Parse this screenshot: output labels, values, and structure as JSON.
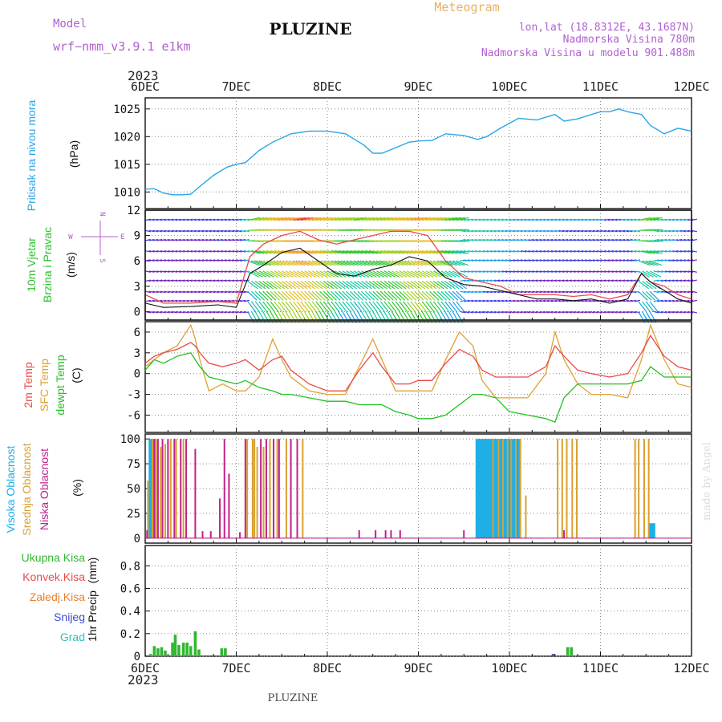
{
  "header": {
    "model_label": "Model",
    "model_name": "wrf−nmm_v3.9.1  e1km",
    "station": "PLUZINE",
    "meteogram": "Meteogram",
    "lonlat": "lon,lat (18.8312E, 43.1687N)",
    "altitude": "Nadmorska Visina 780m",
    "model_altitude": "Nadmorska Visina u modelu 901.488m",
    "year_top": "2023",
    "year_bottom": "2023",
    "footer_station": "PLUZINE",
    "credit": "made by Angel"
  },
  "colors": {
    "pressure": "#2aa6e8",
    "temp2m": "#e84a4a",
    "sfc": "#e0a030",
    "dew": "#22c022",
    "high_cloud": "#1faee6",
    "mid_cloud": "#d8a030",
    "low_cloud": "#c0208c",
    "precip": "#30b830",
    "snow": "#3d4ccc",
    "purple": "#b060d0"
  },
  "days": [
    "6DEC",
    "7DEC",
    "8DEC",
    "9DEC",
    "10DEC",
    "11DEC",
    "12DEC"
  ],
  "chart_data": [
    {
      "type": "line",
      "panel": "pressure",
      "ylabel": "Pritisak na nivou mora",
      "unit": "(hPa)",
      "ylim": [
        1007,
        1027
      ],
      "yticks": [
        1010,
        1015,
        1020,
        1025
      ],
      "x": [
        0,
        0.1,
        0.2,
        0.3,
        0.4,
        0.5,
        0.6,
        0.75,
        0.9,
        1.0,
        1.1,
        1.25,
        1.4,
        1.6,
        1.8,
        2.0,
        2.2,
        2.4,
        2.5,
        2.6,
        2.75,
        2.9,
        3.0,
        3.15,
        3.3,
        3.5,
        3.65,
        3.75,
        3.9,
        4.1,
        4.3,
        4.5,
        4.6,
        4.75,
        4.9,
        5.0,
        5.1,
        5.2,
        5.3,
        5.45,
        5.55,
        5.7,
        5.85,
        6.0
      ],
      "series": [
        {
          "values": [
            1010.5,
            1010.6,
            1009.8,
            1009.5,
            1009.5,
            1009.6,
            1011.0,
            1013.0,
            1014.5,
            1015.0,
            1015.3,
            1017.5,
            1019.0,
            1020.5,
            1021.0,
            1021.0,
            1020.5,
            1018.5,
            1017.0,
            1017.0,
            1018.0,
            1019.0,
            1019.2,
            1019.3,
            1020.5,
            1020.2,
            1019.5,
            1020.0,
            1021.5,
            1023.3,
            1023.0,
            1024.0,
            1022.8,
            1023.2,
            1024.0,
            1024.5,
            1024.5,
            1025.0,
            1024.5,
            1024.0,
            1022.0,
            1020.5,
            1021.5,
            1021.0
          ]
        }
      ]
    },
    {
      "type": "line",
      "panel": "wind",
      "ylabel": "10m Vjetar",
      "ylabel2": "Brzina i Pravac",
      "unit": "(m/s)",
      "compass": {
        "n": "N",
        "s": "S",
        "e": "E",
        "w": "W"
      },
      "ylim": [
        -1,
        12
      ],
      "yticks": [
        0,
        3,
        6,
        9,
        12
      ],
      "x": [
        0,
        0.2,
        0.5,
        0.8,
        1.0,
        1.15,
        1.3,
        1.5,
        1.7,
        1.9,
        2.1,
        2.3,
        2.5,
        2.7,
        2.9,
        3.1,
        3.3,
        3.5,
        3.7,
        3.9,
        4.1,
        4.3,
        4.5,
        4.7,
        4.9,
        5.1,
        5.3,
        5.45,
        5.55,
        5.7,
        5.85,
        6.0
      ],
      "series": [
        {
          "name": "mean",
          "values": [
            1.0,
            0.5,
            0.6,
            0.8,
            0.5,
            4.5,
            5.5,
            7.0,
            7.5,
            6.0,
            4.5,
            4.2,
            5.0,
            5.5,
            6.5,
            6.0,
            4.0,
            3.2,
            3.0,
            2.5,
            2.0,
            1.5,
            1.5,
            1.3,
            1.5,
            1.0,
            1.5,
            4.5,
            3.5,
            2.5,
            1.5,
            1.0
          ]
        },
        {
          "name": "gust",
          "values": [
            2.0,
            1.0,
            1.0,
            1.2,
            1.0,
            6.5,
            8.0,
            9.0,
            9.5,
            8.5,
            8.0,
            8.5,
            9.0,
            9.5,
            9.5,
            9.0,
            6.0,
            4.0,
            3.5,
            3.0,
            2.0,
            2.0,
            2.0,
            1.8,
            2.0,
            1.5,
            2.0,
            4.5,
            3.5,
            3.0,
            2.0,
            1.5
          ]
        }
      ]
    },
    {
      "type": "line",
      "panel": "temperature",
      "ylabel": "2m Temp",
      "ylabel2": "SFC Temp",
      "ylabel3": "dewpt Temp",
      "unit": "(C)",
      "ylim": [
        -8.5,
        7.5
      ],
      "yticks": [
        -6,
        -3,
        0,
        3,
        6
      ],
      "x": [
        0,
        0.1,
        0.2,
        0.35,
        0.5,
        0.55,
        0.6,
        0.7,
        0.85,
        1.0,
        1.1,
        1.25,
        1.4,
        1.5,
        1.6,
        1.8,
        2.0,
        2.2,
        2.35,
        2.5,
        2.6,
        2.75,
        2.9,
        3.0,
        3.15,
        3.3,
        3.45,
        3.6,
        3.7,
        3.85,
        4.0,
        4.2,
        4.4,
        4.5,
        4.6,
        4.75,
        4.9,
        5.1,
        5.3,
        5.45,
        5.55,
        5.7,
        5.85,
        6.0
      ],
      "series": [
        {
          "name": "2m",
          "values": [
            1.5,
            2.5,
            3.0,
            3.5,
            4.5,
            4.0,
            3.0,
            1.5,
            1.0,
            1.5,
            2.0,
            0.5,
            2.0,
            2.5,
            0.5,
            -1.5,
            -2.5,
            -2.5,
            0.5,
            3.0,
            1.0,
            -1.5,
            -1.5,
            -1.0,
            -1.0,
            1.5,
            3.5,
            2.5,
            0.5,
            -0.5,
            -0.5,
            -0.5,
            1.0,
            4.0,
            2.5,
            0.5,
            0.0,
            -0.5,
            0.0,
            3.0,
            5.5,
            2.5,
            1.0,
            0.5
          ]
        },
        {
          "name": "sfc",
          "values": [
            1.0,
            2.0,
            3.0,
            4.0,
            7.0,
            5.0,
            2.0,
            -2.5,
            -1.5,
            -2.5,
            -2.5,
            -0.5,
            5.0,
            2.0,
            -0.5,
            -2.5,
            -3.0,
            -3.0,
            1.0,
            5.0,
            2.0,
            -2.5,
            -2.5,
            -2.5,
            -2.5,
            2.0,
            6.0,
            4.0,
            -1.0,
            -3.5,
            -3.5,
            -3.5,
            0.0,
            6.0,
            2.0,
            -1.5,
            -3.0,
            -3.0,
            -3.5,
            2.0,
            7.0,
            2.0,
            -1.5,
            -2.0
          ]
        },
        {
          "name": "dew",
          "values": [
            0.5,
            2.0,
            1.5,
            2.5,
            3.0,
            2.0,
            1.0,
            -0.5,
            -1.0,
            -1.5,
            -1.0,
            -2.0,
            -2.5,
            -3.0,
            -3.0,
            -3.5,
            -4.0,
            -4.0,
            -4.5,
            -4.5,
            -4.5,
            -5.5,
            -6.0,
            -6.5,
            -6.5,
            -6.0,
            -4.5,
            -3.0,
            -3.0,
            -3.5,
            -5.5,
            -6.0,
            -6.5,
            -7.0,
            -3.5,
            -1.5,
            -1.5,
            -1.5,
            -1.5,
            -1.0,
            1.0,
            -0.5,
            -0.5,
            -0.5
          ]
        }
      ]
    },
    {
      "type": "bar",
      "panel": "clouds",
      "ylabel": "Visoka Oblacnost",
      "ylabel2": "Srednja Oblacnost",
      "ylabel3": "Niska Oblacnost",
      "unit": "(%)",
      "ylim": [
        -5,
        105
      ],
      "yticks": [
        0,
        25,
        50,
        75,
        100
      ],
      "series": [
        {
          "name": "high",
          "x": [
            0.06,
            0.09,
            3.65,
            3.68,
            3.71,
            3.74,
            3.77,
            3.8,
            3.83,
            3.86,
            3.89,
            3.92,
            3.95,
            3.98,
            4.01,
            4.04,
            4.07,
            4.1,
            5.55,
            5.58
          ],
          "values": [
            100,
            100,
            100,
            100,
            100,
            100,
            100,
            100,
            100,
            100,
            100,
            100,
            100,
            100,
            100,
            100,
            100,
            100,
            15,
            15
          ]
        },
        {
          "name": "mid",
          "x": [
            0.03,
            0.08,
            0.12,
            0.17,
            0.22,
            0.28,
            0.34,
            0.42,
            1.12,
            1.18,
            1.2,
            1.23,
            1.3,
            1.37,
            1.45,
            1.55,
            1.73,
            3.82,
            3.88,
            3.93,
            3.98,
            4.02,
            4.07,
            4.12,
            4.18,
            4.53,
            4.58,
            4.63,
            4.69,
            4.74,
            5.38,
            5.42,
            5.48,
            5.53
          ],
          "values": [
            58,
            100,
            100,
            92,
            95,
            100,
            100,
            100,
            100,
            100,
            100,
            92,
            92,
            100,
            100,
            100,
            100,
            100,
            100,
            100,
            100,
            100,
            100,
            100,
            43,
            100,
            100,
            100,
            100,
            100,
            100,
            100,
            100,
            100
          ]
        },
        {
          "name": "low",
          "x": [
            0.02,
            0.1,
            0.14,
            0.19,
            0.25,
            0.32,
            0.39,
            0.45,
            0.55,
            0.63,
            0.72,
            0.82,
            0.87,
            0.92,
            1.04,
            1.1,
            1.27,
            1.33,
            1.41,
            1.47,
            1.6,
            1.67,
            2.35,
            2.53,
            2.64,
            2.7,
            2.8,
            3.5,
            4.6
          ],
          "values": [
            8,
            100,
            100,
            100,
            100,
            100,
            100,
            100,
            90,
            7,
            7,
            40,
            100,
            65,
            6,
            100,
            100,
            100,
            100,
            100,
            100,
            100,
            8,
            8,
            8,
            8,
            8,
            8,
            8
          ]
        }
      ]
    },
    {
      "type": "bar",
      "panel": "precip",
      "ylabel": "1hr Precip",
      "unit": "(mm)",
      "legend": [
        "Ukupna Kisa",
        "Konvek.Kisa",
        "Zaledj.Kisa",
        "Snijeg",
        "Grad"
      ],
      "ylim": [
        0,
        0.98
      ],
      "yticks": [
        0,
        0.2,
        0.4,
        0.6,
        0.8
      ],
      "series": [
        {
          "name": "Ukupna Kisa",
          "x": [
            0.06,
            0.1,
            0.14,
            0.18,
            0.22,
            0.3,
            0.33,
            0.37,
            0.42,
            0.46,
            0.5,
            0.55,
            0.59,
            0.84,
            0.88,
            4.64,
            4.68
          ],
          "values": [
            0.02,
            0.09,
            0.07,
            0.08,
            0.05,
            0.12,
            0.19,
            0.1,
            0.12,
            0.12,
            0.09,
            0.22,
            0.06,
            0.07,
            0.07,
            0.08,
            0.08
          ]
        },
        {
          "name": "Snijeg",
          "x": [
            4.48
          ],
          "values": [
            0.02
          ]
        }
      ]
    }
  ]
}
